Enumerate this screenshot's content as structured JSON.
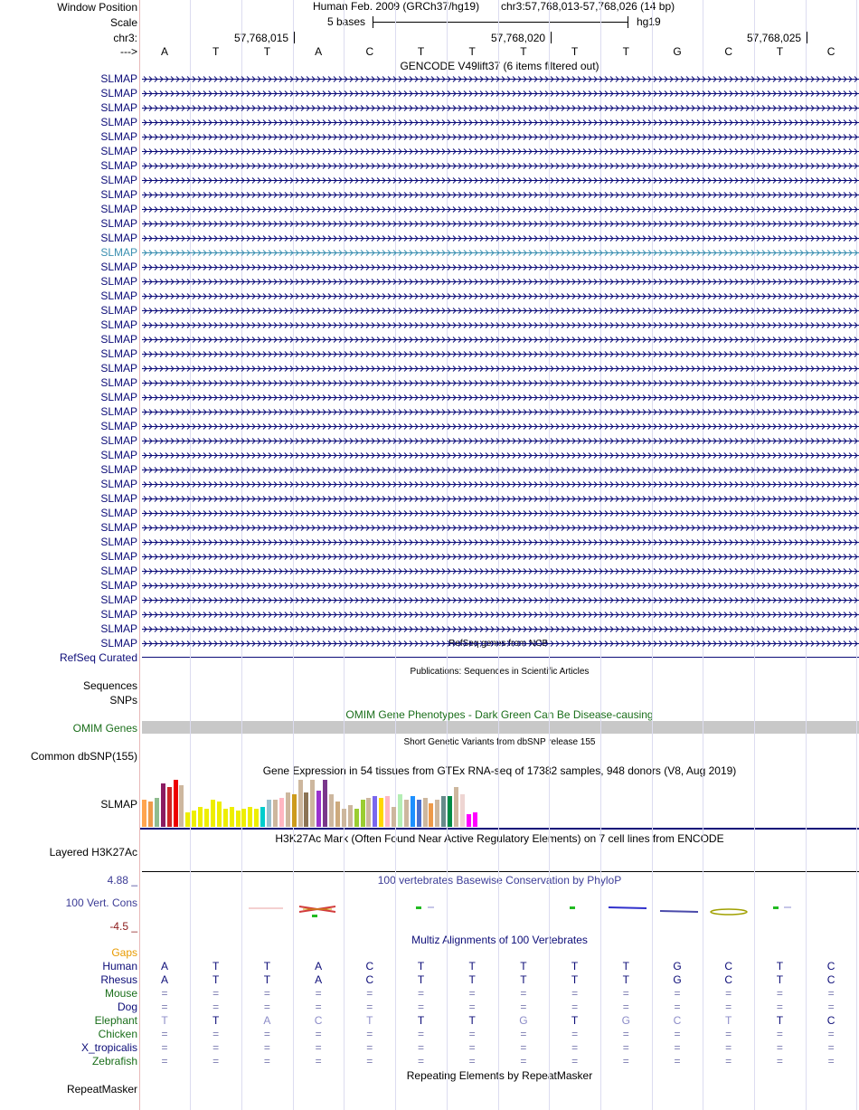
{
  "header": {
    "window_position_label": "Window Position",
    "assembly": "Human Feb. 2009 (GRCh37/hg19)",
    "position": "chr3:57,768,013-57,768,026 (14 bp)",
    "scale_label": "Scale",
    "scale_text": "5 bases",
    "scale_db": "hg19",
    "chrom_label": "chr3:",
    "ticks": [
      "57,768,015",
      "57,768,020",
      "57,768,025"
    ],
    "strand_label": "--->",
    "bases": [
      "A",
      "T",
      "T",
      "A",
      "C",
      "T",
      "T",
      "T",
      "T",
      "T",
      "G",
      "C",
      "T",
      "C"
    ]
  },
  "gencode": {
    "title": "GENCODE V49lift37 (6 items filtered out)",
    "gene_names": [
      "SLMAP",
      "SLMAP",
      "SLMAP",
      "SLMAP",
      "SLMAP",
      "SLMAP",
      "SLMAP",
      "SLMAP",
      "SLMAP",
      "SLMAP",
      "SLMAP",
      "SLMAP",
      "SLMAP",
      "SLMAP",
      "SLMAP",
      "SLMAP",
      "SLMAP",
      "SLMAP",
      "SLMAP",
      "SLMAP",
      "SLMAP",
      "SLMAP",
      "SLMAP",
      "SLMAP",
      "SLMAP",
      "SLMAP",
      "SLMAP",
      "SLMAP",
      "SLMAP",
      "SLMAP",
      "SLMAP",
      "SLMAP",
      "SLMAP",
      "SLMAP",
      "SLMAP",
      "SLMAP",
      "SLMAP",
      "SLMAP",
      "SLMAP",
      "SLMAP"
    ],
    "highlight_index": 12,
    "color": "#0c0c78",
    "highlight_color": "#3a8fb0"
  },
  "refseq": {
    "title": "RefSeq genes from NCBI",
    "label": "RefSeq Curated"
  },
  "publications": {
    "title": "Publications: Sequences in Scientific Articles",
    "label_line1": "Sequences",
    "label_line2": "SNPs"
  },
  "omim": {
    "title": "OMIM Gene Phenotypes - Dark Green Can Be Disease-causing",
    "label": "OMIM Genes"
  },
  "dbsnp": {
    "title": "Short Genetic Variants from dbSNP release 155",
    "label": "Common dbSNP(155)"
  },
  "gtex": {
    "title": "Gene Expression in 54 tissues from GTEx RNA-seq of 17382 samples, 948 donors (V8, Aug 2019)",
    "label": "SLMAP",
    "values": [
      30,
      28,
      32,
      48,
      44,
      52,
      46,
      16,
      18,
      22,
      20,
      30,
      28,
      20,
      22,
      18,
      20,
      22,
      20,
      22,
      30,
      30,
      32,
      38,
      36,
      52,
      38,
      52,
      40,
      52,
      36,
      28,
      20,
      24,
      20,
      30,
      32,
      34,
      32,
      34,
      22,
      36,
      30,
      34,
      30,
      32,
      26,
      30,
      34,
      34,
      44,
      36,
      14,
      16
    ],
    "colors": [
      "#ffa54f",
      "#ee9a49",
      "#8fbc8f",
      "#8b1c62",
      "#cd2626",
      "#ee0000",
      "#cdb79e",
      "#eeee00",
      "#eeee00",
      "#eeee00",
      "#eeee00",
      "#eeee00",
      "#eeee00",
      "#eeee00",
      "#eeee00",
      "#eeee00",
      "#eeee00",
      "#eeee00",
      "#eeee00",
      "#00cdcd",
      "#9ac0cd",
      "#cdb79e",
      "#ffb6c1",
      "#cdb79e",
      "#cd9b1d",
      "#cdb79e",
      "#8b7355",
      "#cdb79e",
      "#9a32cd",
      "#7a378b",
      "#cdb79e",
      "#cdaa7d",
      "#cdb79e",
      "#cdb79e",
      "#9acd32",
      "#9acd32",
      "#cdb79e",
      "#7a67ee",
      "#ffd700",
      "#ffb6c1",
      "#cdb79e",
      "#b4eeb4",
      "#cdb79e",
      "#1e90ff",
      "#4a6fcd",
      "#cdb79e",
      "#ee9a49",
      "#cdb79e",
      "#668b8b",
      "#008b45",
      "#cdb79e",
      "#eed5d2",
      "#ff00ff",
      "#ff00ff"
    ]
  },
  "h3k27ac": {
    "title": "H3K27Ac Mark (Often Found Near Active Regulatory Elements) on 7 cell lines from ENCODE",
    "label": "Layered H3K27Ac"
  },
  "phylop": {
    "title": "100 vertebrates Basewise Conservation by PhyloP",
    "label": "100 Vert. Cons",
    "max": "4.88 _",
    "min": "-4.5 _",
    "title_color": "#3c3c96",
    "max_color": "#3c3c96",
    "min_color": "#8b1a1a"
  },
  "multiz": {
    "title": "Multiz Alignments of 100 Vertebrates",
    "gaps_label": "Gaps",
    "species": [
      {
        "name": "Human",
        "color": "#0c0c78",
        "bases": [
          "A",
          "T",
          "T",
          "A",
          "C",
          "T",
          "T",
          "T",
          "T",
          "T",
          "G",
          "C",
          "T",
          "C"
        ],
        "dim": []
      },
      {
        "name": "Rhesus",
        "color": "#0c0c78",
        "bases": [
          "A",
          "T",
          "T",
          "A",
          "C",
          "T",
          "T",
          "T",
          "T",
          "T",
          "G",
          "C",
          "T",
          "C"
        ],
        "dim": []
      },
      {
        "name": "Mouse",
        "color": "#1a6e1a",
        "bases": [
          "=",
          "=",
          "=",
          "=",
          "=",
          "=",
          "=",
          "=",
          "=",
          "=",
          "=",
          "=",
          "=",
          "="
        ],
        "dim": []
      },
      {
        "name": "Dog",
        "color": "#0c0c78",
        "bases": [
          "=",
          "=",
          "=",
          "=",
          "=",
          "=",
          "=",
          "=",
          "=",
          "=",
          "=",
          "=",
          "=",
          "="
        ],
        "dim": []
      },
      {
        "name": "Elephant",
        "color": "#1a6e1a",
        "bases": [
          "T",
          "T",
          "A",
          "C",
          "T",
          "T",
          "T",
          "G",
          "T",
          "G",
          "C",
          "T",
          "T",
          "C"
        ],
        "dim": [
          0,
          2,
          3,
          4,
          7,
          9,
          10,
          11
        ]
      },
      {
        "name": "Chicken",
        "color": "#1a6e1a",
        "bases": [
          "=",
          "=",
          "=",
          "=",
          "=",
          "=",
          "=",
          "=",
          "=",
          "=",
          "=",
          "=",
          "=",
          "="
        ],
        "dim": []
      },
      {
        "name": "X_tropicalis",
        "color": "#0c0c78",
        "bases": [
          "=",
          "=",
          "=",
          "=",
          "=",
          "=",
          "=",
          "=",
          "=",
          "=",
          "=",
          "=",
          "=",
          "="
        ],
        "dim": []
      },
      {
        "name": "Zebrafish",
        "color": "#1a6e1a",
        "bases": [
          "=",
          "=",
          "=",
          "=",
          "=",
          "=",
          "=",
          "=",
          "=",
          "=",
          "=",
          "=",
          "=",
          "="
        ],
        "dim": []
      }
    ]
  },
  "repeatmasker": {
    "title": "Repeating Elements by RepeatMasker",
    "label": "RepeatMasker"
  }
}
